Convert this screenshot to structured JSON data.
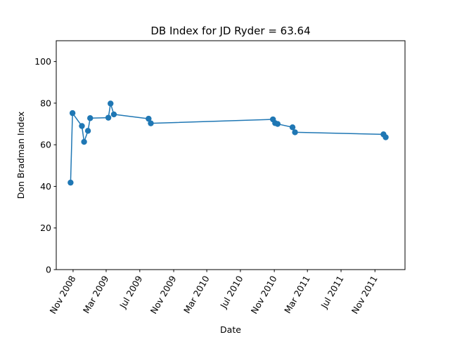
{
  "chart_data": {
    "type": "line",
    "title": "DB Index for JD Ryder = 63.64",
    "xlabel": "Date",
    "ylabel": "Don Bradman Index",
    "ylim": [
      0,
      110
    ],
    "yticks": [
      0,
      20,
      40,
      60,
      80,
      100
    ],
    "xlim": [
      "2008-09-01",
      "2012-02-18"
    ],
    "xticks": [
      {
        "date": "2008-11-01",
        "label": "Nov 2008"
      },
      {
        "date": "2009-03-01",
        "label": "Mar 2009"
      },
      {
        "date": "2009-07-01",
        "label": "Jul 2009"
      },
      {
        "date": "2009-11-01",
        "label": "Nov 2009"
      },
      {
        "date": "2010-03-01",
        "label": "Mar 2010"
      },
      {
        "date": "2010-07-01",
        "label": "Jul 2010"
      },
      {
        "date": "2010-11-01",
        "label": "Nov 2010"
      },
      {
        "date": "2011-03-01",
        "label": "Mar 2011"
      },
      {
        "date": "2011-07-01",
        "label": "Jul 2011"
      },
      {
        "date": "2011-11-01",
        "label": "Nov 2011"
      }
    ],
    "grid": false,
    "color": "#1f77b4",
    "series": [
      {
        "points": [
          {
            "x": "2008-10-23",
            "y": 41.8
          },
          {
            "x": "2008-10-30",
            "y": 75.2
          },
          {
            "x": "2008-12-03",
            "y": 69.0
          },
          {
            "x": "2008-12-11",
            "y": 61.4
          },
          {
            "x": "2008-12-25",
            "y": 66.7
          },
          {
            "x": "2009-01-02",
            "y": 72.8
          },
          {
            "x": "2009-03-09",
            "y": 73.0
          },
          {
            "x": "2009-03-17",
            "y": 79.8
          },
          {
            "x": "2009-03-29",
            "y": 74.6
          },
          {
            "x": "2009-08-02",
            "y": 72.5
          },
          {
            "x": "2009-08-10",
            "y": 70.3
          },
          {
            "x": "2010-10-27",
            "y": 72.2
          },
          {
            "x": "2010-11-04",
            "y": 70.4
          },
          {
            "x": "2010-11-13",
            "y": 70.0
          },
          {
            "x": "2011-01-06",
            "y": 68.4
          },
          {
            "x": "2011-01-15",
            "y": 66.0
          },
          {
            "x": "2011-12-02",
            "y": 65.0
          },
          {
            "x": "2011-12-10",
            "y": 63.6
          }
        ]
      }
    ]
  }
}
